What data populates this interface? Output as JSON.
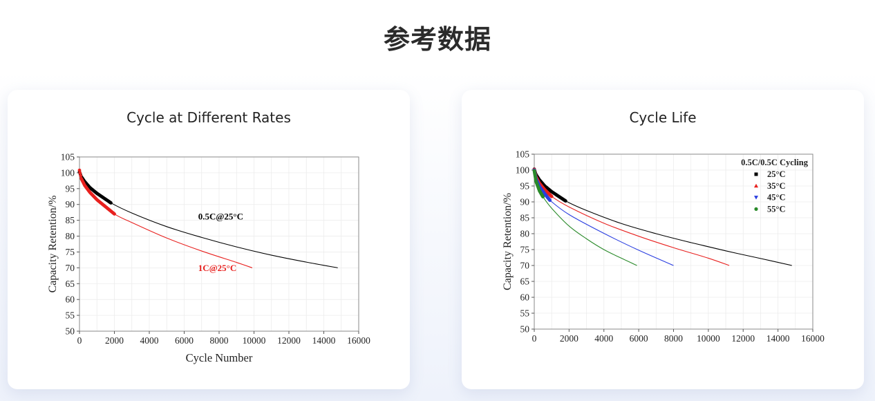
{
  "page": {
    "title": "参考数据"
  },
  "chart_data": [
    {
      "type": "line",
      "title": "Cycle at Different Rates",
      "xlabel": "Cycle Number",
      "ylabel": "Capacity Retention/%",
      "xlim": [
        0,
        16000
      ],
      "ylim": [
        50,
        105
      ],
      "xticks": [
        0,
        2000,
        4000,
        6000,
        8000,
        10000,
        12000,
        14000,
        16000
      ],
      "yticks": [
        50,
        55,
        60,
        65,
        70,
        75,
        80,
        85,
        90,
        95,
        100,
        105
      ],
      "grid": true,
      "series": [
        {
          "name": "0.5C@25°C",
          "color": "#000000",
          "x": [
            0,
            100,
            300,
            600,
            1000,
            1800,
            3000,
            5000,
            7000,
            9000,
            11000,
            13000,
            14800
          ],
          "y": [
            100.3,
            98.8,
            97.2,
            95.3,
            93.5,
            90.5,
            87.3,
            83.0,
            79.6,
            76.6,
            74.0,
            71.8,
            70.0
          ],
          "measured_until": 1800
        },
        {
          "name": "1C@25°C",
          "color": "#e8201e",
          "x": [
            0,
            100,
            300,
            600,
            1000,
            2000,
            3000,
            5000,
            7000,
            9000,
            9900
          ],
          "y": [
            100.8,
            98.2,
            96.0,
            93.8,
            91.5,
            87.0,
            84.3,
            79.4,
            75.3,
            71.7,
            70.0
          ],
          "measured_until": 2000
        }
      ],
      "annotations": [
        {
          "text": "0.5C@25°C",
          "x": 6800,
          "y": 85.2,
          "color": "#000000"
        },
        {
          "text": "1C@25°C",
          "x": 6800,
          "y": 69.0,
          "color": "#e8201e"
        }
      ]
    },
    {
      "type": "line",
      "title": "Cycle Life",
      "xlabel": "",
      "ylabel": "Capacity Retention/%",
      "xlim": [
        0,
        16000
      ],
      "ylim": [
        50,
        105
      ],
      "xticks": [
        0,
        2000,
        4000,
        6000,
        8000,
        10000,
        12000,
        14000,
        16000
      ],
      "yticks": [
        50,
        55,
        60,
        65,
        70,
        75,
        80,
        85,
        90,
        95,
        100,
        105
      ],
      "grid": true,
      "legend": {
        "title": "0.5C/0.5C Cycling",
        "placement": "top-right"
      },
      "series": [
        {
          "name": "25°C",
          "color": "#000000",
          "marker": "square",
          "x": [
            0,
            100,
            300,
            600,
            1000,
            1800,
            3000,
            5000,
            7000,
            9000,
            11000,
            13000,
            14800
          ],
          "y": [
            100.3,
            98.6,
            96.9,
            95.0,
            93.2,
            90.3,
            87.3,
            83.2,
            80.0,
            77.2,
            74.6,
            72.2,
            70.0
          ],
          "measured_until": 1800
        },
        {
          "name": "35°C",
          "color": "#e8201e",
          "marker": "triangle-up",
          "x": [
            0,
            100,
            300,
            600,
            1000,
            2000,
            4000,
            6000,
            8000,
            10000,
            11200
          ],
          "y": [
            100.2,
            97.9,
            95.8,
            93.8,
            91.7,
            88.4,
            83.3,
            79.2,
            75.6,
            72.3,
            70.0
          ],
          "measured_until": 1000
        },
        {
          "name": "45°C",
          "color": "#2a3ee0",
          "marker": "triangle-down",
          "x": [
            0,
            100,
            300,
            600,
            900,
            2000,
            4000,
            6000,
            8000
          ],
          "y": [
            100.0,
            97.3,
            94.8,
            92.5,
            90.5,
            86.0,
            80.1,
            74.8,
            70.0
          ],
          "measured_until": 900
        },
        {
          "name": "55°C",
          "color": "#2a8a2a",
          "marker": "circle",
          "x": [
            0,
            100,
            300,
            500,
            1000,
            2000,
            3000,
            4000,
            5000,
            5900
          ],
          "y": [
            99.8,
            96.5,
            93.5,
            91.6,
            88.0,
            82.4,
            78.4,
            75.0,
            72.3,
            70.0
          ],
          "measured_until": 500
        }
      ]
    }
  ],
  "colors": {
    "accent_red": "#e8201e",
    "grid": "#ececec",
    "axis": "#555555"
  }
}
